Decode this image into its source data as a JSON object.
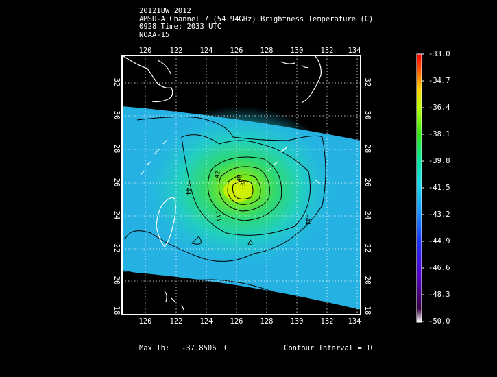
{
  "header": {
    "line1": "201218W 2012",
    "line2": "AMSU-A Channel 7 (54.94GHz) Brightness Temperature (C)",
    "line3": "0928 Time: 2033 UTC",
    "line4": "NOAA-15"
  },
  "lon_ticks": [
    "120",
    "122",
    "124",
    "126",
    "128",
    "130",
    "132",
    "134"
  ],
  "lat_ticks": [
    "32",
    "30",
    "28",
    "26",
    "24",
    "22",
    "20",
    "18"
  ],
  "contour_labels": [
    "-44",
    "-42",
    "-40",
    "-38",
    "-43",
    "-44"
  ],
  "colorbar": {
    "labels": [
      "-33.0",
      "-34.7",
      "-36.4",
      "-38.1",
      "-39.8",
      "-41.5",
      "-43.2",
      "-44.9",
      "-46.6",
      "-48.3",
      "-50.0"
    ],
    "colors": [
      "#ff0000",
      "#ff6a00",
      "#ffd000",
      "#b8ff00",
      "#33e61a",
      "#00e6a0",
      "#1ad9e6",
      "#1a9cff",
      "#2233ff",
      "#5500cc",
      "#220033"
    ]
  },
  "footer": {
    "max_tb_label": "Max Tb:",
    "max_tb_value": "-37.8506",
    "max_tb_unit": "C",
    "contour_interval": "Contour Interval = 1C"
  }
}
